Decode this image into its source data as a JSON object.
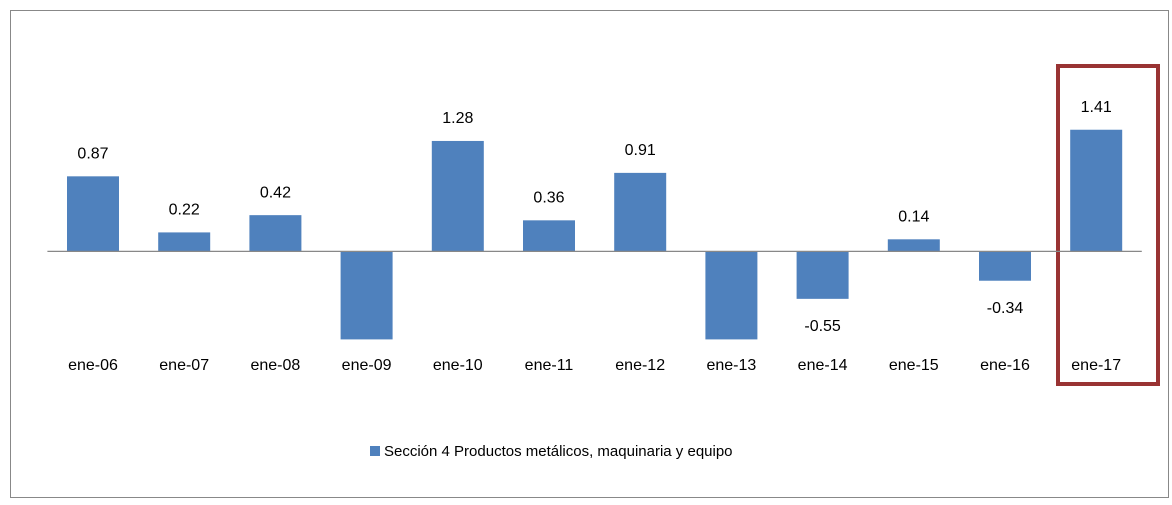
{
  "chart_data": {
    "type": "bar",
    "categories": [
      "ene-06",
      "ene-07",
      "ene-08",
      "ene-09",
      "ene-10",
      "ene-11",
      "ene-12",
      "ene-13",
      "ene-14",
      "ene-15",
      "ene-16",
      "ene-17"
    ],
    "series": [
      {
        "name": "Sección 4 Productos metálicos, maquinaria y equipo",
        "color": "#4f81bd",
        "values": [
          0.87,
          0.22,
          0.42,
          -1.02,
          1.28,
          0.36,
          0.91,
          -1.02,
          -0.55,
          0.14,
          -0.34,
          1.41
        ],
        "value_labels": [
          "0.87",
          "0.22",
          "0.42",
          null,
          "1.28",
          "0.36",
          "0.91",
          null,
          "-0.55",
          "0.14",
          "-0.34",
          "1.41"
        ]
      }
    ],
    "ylim": [
      -1.02,
      2.45
    ],
    "legend": "bottom"
  }
}
